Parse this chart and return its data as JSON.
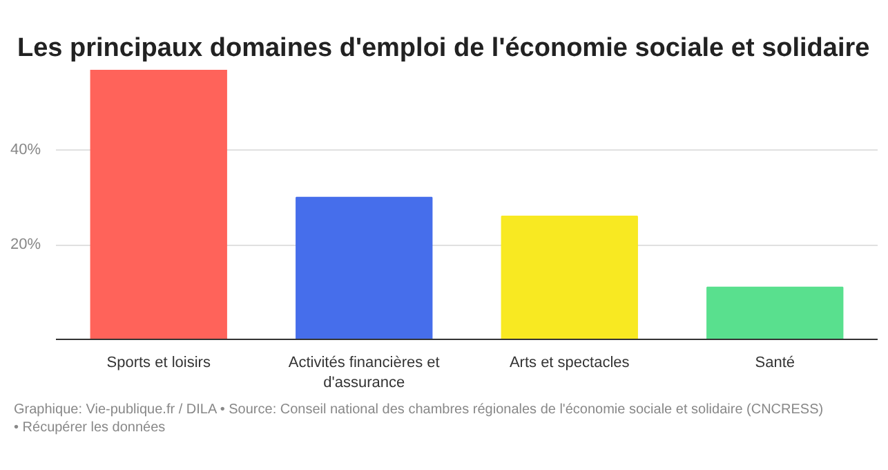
{
  "chart_data": {
    "type": "bar",
    "title": "Les principaux domaines d'emploi de l'économie sociale et solidaire",
    "categories": [
      "Sports et loisirs",
      "Activités financières et d'assurance",
      "Arts et spectacles",
      "Santé"
    ],
    "values": [
      57,
      30,
      26,
      11
    ],
    "colors": [
      "#ff635a",
      "#466eeb",
      "#f8e922",
      "#59e08e"
    ],
    "ylim": [
      0,
      57
    ],
    "yticks": [
      {
        "value": 0,
        "label": null
      },
      {
        "value": 20,
        "label": "20%"
      },
      {
        "value": 40,
        "label": "40%"
      }
    ],
    "grid": "y",
    "annotations": [
      "Graphique: Vie-publique.fr / DILA • Source: Conseil national des chambres régionales de l'économie sociale et solidaire (CNCRESS)",
      "• Récupérer les données"
    ]
  }
}
